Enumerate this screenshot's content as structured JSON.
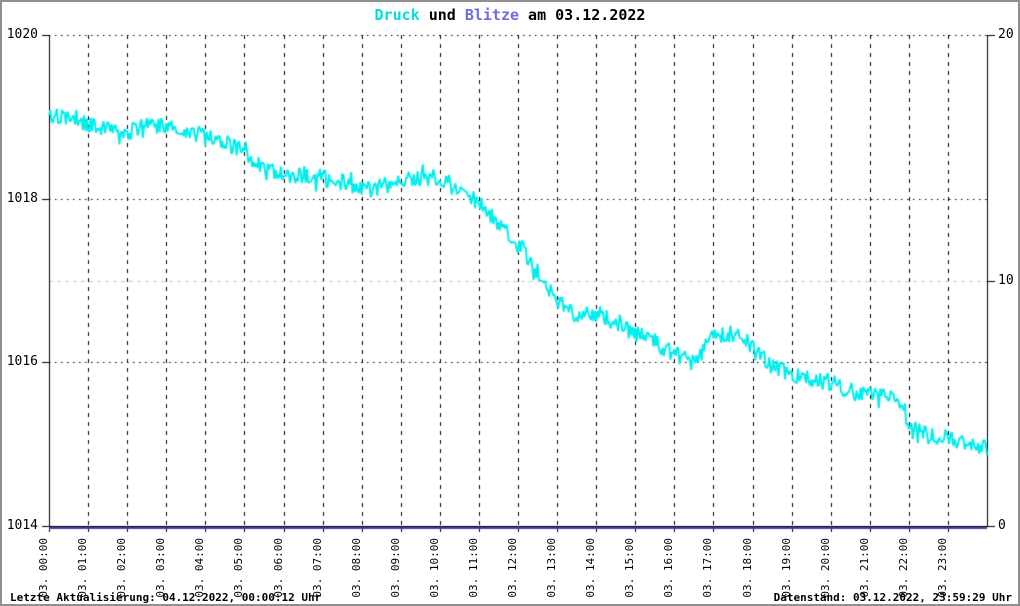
{
  "title": {
    "part_druck": "Druck",
    "part_und": " und ",
    "part_blitze": "Blitze",
    "part_date": " am 03.12.2022"
  },
  "footer": {
    "left": "Letzte Aktualisierung: 04.12.2022, 00:00:12 Uhr",
    "right": "Datenstand: 03.12.2022, 23:59:29 Uhr"
  },
  "colors": {
    "background": "#ffffff",
    "frame_border": "#909090",
    "axis": "#000000",
    "grid_major": "#000000",
    "grid_minor_gray": "#c8c8c8",
    "druck_line": "#00eeee",
    "druck_title": "#00dddd",
    "blitze_title": "#6e6edc",
    "blitze_line": "#4040b4",
    "text": "#000000"
  },
  "chart_data": {
    "type": "line",
    "title": "Druck und Blitze am 03.12.2022",
    "xlabel": "",
    "ylabel_left": "",
    "ylabel_right": "",
    "x_range_hours": [
      0,
      24
    ],
    "x_tick_hours": [
      0,
      1,
      2,
      3,
      4,
      5,
      6,
      7,
      8,
      9,
      10,
      11,
      12,
      13,
      14,
      15,
      16,
      17,
      18,
      19,
      20,
      21,
      22,
      23
    ],
    "x_tick_labels": [
      "03. 00:00",
      "03. 01:00",
      "03. 02:00",
      "03. 03:00",
      "03. 04:00",
      "03. 05:00",
      "03. 06:00",
      "03. 07:00",
      "03. 08:00",
      "03. 09:00",
      "03. 10:00",
      "03. 11:00",
      "03. 12:00",
      "03. 13:00",
      "03. 14:00",
      "03. 15:00",
      "03. 16:00",
      "03. 17:00",
      "03. 18:00",
      "03. 19:00",
      "03. 20:00",
      "03. 21:00",
      "03. 22:00",
      "03. 23:00"
    ],
    "y_left_axis": {
      "range": [
        1014,
        1020
      ],
      "ticks": [
        1020,
        1018,
        1016,
        1014
      ],
      "dotted_gridline_values": [
        1020,
        1018,
        1016
      ]
    },
    "y_right_axis": {
      "range": [
        0,
        20
      ],
      "ticks": [
        20,
        10,
        0
      ],
      "gray_gridline_values": [
        10
      ]
    },
    "grid": {
      "vertical_dashed_every_hour": true,
      "horizontal_dotted": true
    },
    "legend": "none",
    "series": [
      {
        "name": "Druck",
        "axis": "left",
        "color": "#00eeee",
        "anchor_interval_hours": 0.5,
        "anchor_values_hpa": [
          1019.05,
          1018.95,
          1018.9,
          1018.85,
          1018.8,
          1018.9,
          1018.9,
          1018.85,
          1018.75,
          1018.7,
          1018.55,
          1018.35,
          1018.3,
          1018.3,
          1018.25,
          1018.2,
          1018.1,
          1018.15,
          1018.2,
          1018.25,
          1018.25,
          1018.1,
          1017.95,
          1017.7,
          1017.45,
          1017.1,
          1016.75,
          1016.55,
          1016.6,
          1016.5,
          1016.35,
          1016.25,
          1016.1,
          1016.0,
          1016.3,
          1016.35,
          1016.2,
          1015.95,
          1015.85,
          1015.8,
          1015.75,
          1015.65,
          1015.6,
          1015.6,
          1015.25,
          1015.1,
          1015.1,
          1015.0,
          1014.95
        ],
        "noise_amplitude_hpa": 0.11
      },
      {
        "name": "Blitze",
        "axis": "right",
        "color": "#4040b4",
        "constant_value": 0
      }
    ]
  }
}
